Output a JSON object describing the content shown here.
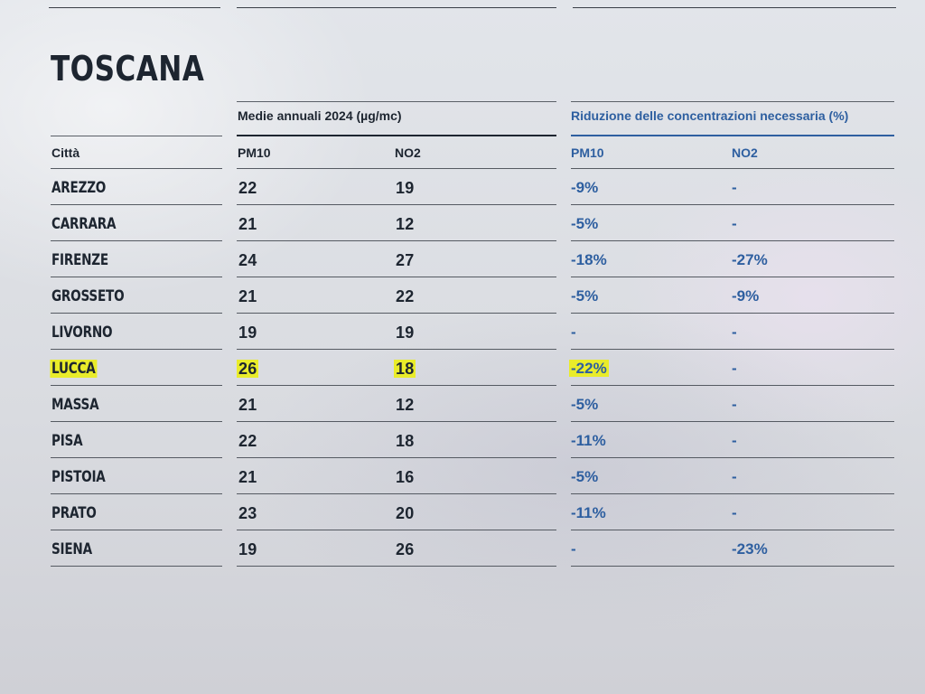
{
  "title": "TOSCANA",
  "header_left": "Medie annuali 2024 (µg/mc)",
  "header_right": "Riduzione delle concentrazioni necessaria (%)",
  "columns": {
    "city": "Città",
    "pm10": "PM10",
    "no2": "NO2",
    "red_pm10": "PM10",
    "red_no2": "NO2"
  },
  "rows": [
    {
      "city": "AREZZO",
      "pm10": "22",
      "no2": "19",
      "red_pm10": "-9%",
      "red_no2": "-",
      "highlight": false
    },
    {
      "city": "CARRARA",
      "pm10": "21",
      "no2": "12",
      "red_pm10": "-5%",
      "red_no2": "-",
      "highlight": false
    },
    {
      "city": "FIRENZE",
      "pm10": "24",
      "no2": "27",
      "red_pm10": "-18%",
      "red_no2": "-27%",
      "highlight": false
    },
    {
      "city": "GROSSETO",
      "pm10": "21",
      "no2": "22",
      "red_pm10": "-5%",
      "red_no2": "-9%",
      "highlight": false
    },
    {
      "city": "LIVORNO",
      "pm10": "19",
      "no2": "19",
      "red_pm10": "-",
      "red_no2": "-",
      "highlight": false
    },
    {
      "city": "LUCCA",
      "pm10": "26",
      "no2": "18",
      "red_pm10": "-22%",
      "red_no2": "-",
      "highlight": true
    },
    {
      "city": "MASSA",
      "pm10": "21",
      "no2": "12",
      "red_pm10": "-5%",
      "red_no2": "-",
      "highlight": false
    },
    {
      "city": "PISA",
      "pm10": "22",
      "no2": "18",
      "red_pm10": "-11%",
      "red_no2": "-",
      "highlight": false
    },
    {
      "city": "PISTOIA",
      "pm10": "21",
      "no2": "16",
      "red_pm10": "-5%",
      "red_no2": "-",
      "highlight": false
    },
    {
      "city": "PRATO",
      "pm10": "23",
      "no2": "20",
      "red_pm10": "-11%",
      "red_no2": "-",
      "highlight": false
    },
    {
      "city": "SIENA",
      "pm10": "19",
      "no2": "26",
      "red_pm10": "-",
      "red_no2": "-23%",
      "highlight": false
    }
  ],
  "colors": {
    "text": "#1d2530",
    "accent_blue": "#2e5fa0",
    "highlight_yellow": "#e9ec2a"
  }
}
